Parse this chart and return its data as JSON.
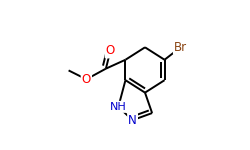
{
  "bg_color": "#ffffff",
  "bond_lw": 1.4,
  "bond_color": "#000000",
  "dbo": 0.013,
  "atom_labels": [
    {
      "text": "O",
      "color": "#ff0000",
      "fontsize": 8.5
    },
    {
      "text": "O",
      "color": "#ff0000",
      "fontsize": 8.5
    },
    {
      "text": "NH",
      "color": "#0000cc",
      "fontsize": 8.0
    },
    {
      "text": "N",
      "color": "#0000cc",
      "fontsize": 8.5
    },
    {
      "text": "Br",
      "color": "#8b4513",
      "fontsize": 8.5
    }
  ],
  "figsize": [
    2.5,
    1.5
  ],
  "dpi": 100
}
